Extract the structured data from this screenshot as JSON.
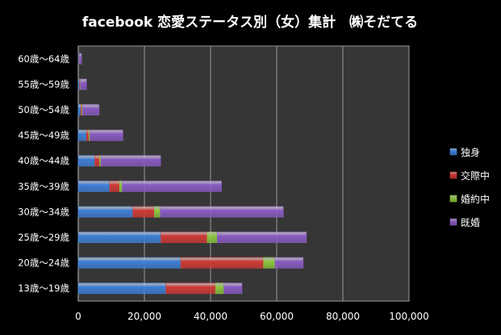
{
  "chart_data": {
    "type": "bar",
    "orientation": "horizontal",
    "stacked": true,
    "title": "facebook 恋愛ステータス別（女）集計　㈱そだてる",
    "xlabel": "",
    "ylabel": "",
    "xlim": [
      0,
      100000
    ],
    "xticks": [
      0,
      20000,
      40000,
      60000,
      80000,
      100000
    ],
    "xtick_labels": [
      "0",
      "20,000",
      "40,000",
      "60,000",
      "80,000",
      "100,000"
    ],
    "grid": true,
    "legend_position": "right",
    "categories": [
      "60歳～64歳",
      "55歳～59歳",
      "50歳～54歳",
      "45歳～49歳",
      "40歳～44歳",
      "35歳～39歳",
      "30歳～34歳",
      "25歳～29歳",
      "20歳～24歳",
      "13歳～19歳"
    ],
    "series": [
      {
        "name": "独身",
        "color": "#3f7fd8",
        "values": [
          200,
          400,
          800,
          2500,
          5000,
          9500,
          16500,
          25000,
          31000,
          26500
        ]
      },
      {
        "name": "交際中",
        "color": "#d03a36",
        "values": [
          100,
          200,
          300,
          700,
          1500,
          3000,
          6500,
          14000,
          25000,
          15000
        ]
      },
      {
        "name": "婚約中",
        "color": "#8cc63f",
        "values": [
          50,
          100,
          200,
          300,
          400,
          800,
          1800,
          3000,
          3500,
          2500
        ]
      },
      {
        "name": "既婚",
        "color": "#8a5cc4",
        "values": [
          650,
          1800,
          5000,
          10000,
          18000,
          30000,
          37200,
          27000,
          8500,
          5500
        ]
      }
    ]
  }
}
